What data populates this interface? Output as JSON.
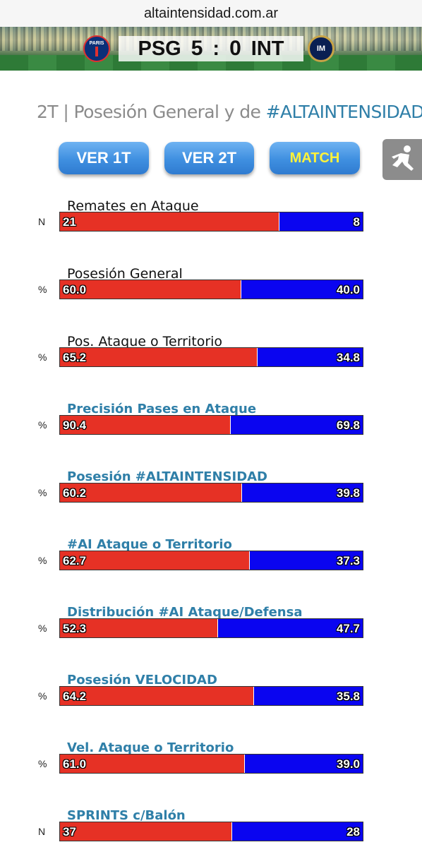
{
  "browser": {
    "url": "altaintensidad.com.ar"
  },
  "banner": {
    "home_team": "PSG",
    "home_score": "5",
    "separator": ":",
    "away_score": "0",
    "away_team": "INT",
    "home_logo_text": "PARIS",
    "away_logo_text": "IM"
  },
  "page": {
    "title_prefix": "2T | Posesión General y de ",
    "title_highlight": "#ALTAINTENSIDAD"
  },
  "buttons": {
    "ver1t": "VER 1T",
    "ver2t": "VER 2T",
    "match": "MATCH"
  },
  "colors": {
    "home_bar": "#e63125",
    "away_bar": "#0a05f0",
    "accent_label": "#2f7fa8",
    "button_blue": "#3f8fe0",
    "match_text": "#fff23a"
  },
  "stats": [
    {
      "label": "Remates en Ataque",
      "style": "plain",
      "unit": "N",
      "home": "21",
      "away": "8",
      "home_share": 72.4
    },
    {
      "label": "Posesión General",
      "style": "plain",
      "unit": "%",
      "home": "60.0",
      "away": "40.0",
      "home_share": 60.0
    },
    {
      "label": "Pos. Ataque o Territorio",
      "style": "plain",
      "unit": "%",
      "home": "65.2",
      "away": "34.8",
      "home_share": 65.2
    },
    {
      "label": "Precisión Pases en Ataque",
      "style": "accent",
      "unit": "%",
      "home": "90.4",
      "away": "69.8",
      "home_share": 56.4
    },
    {
      "label": "Posesión #ALTAINTENSIDAD",
      "style": "accent",
      "unit": "%",
      "home": "60.2",
      "away": "39.8",
      "home_share": 60.2
    },
    {
      "label": "#AI Ataque o Territorio",
      "style": "accent",
      "unit": "%",
      "home": "62.7",
      "away": "37.3",
      "home_share": 62.7
    },
    {
      "label": "Distribución #AI Ataque/Defensa",
      "style": "accent",
      "unit": "%",
      "home": "52.3",
      "away": "47.7",
      "home_share": 52.3
    },
    {
      "label": "Posesión VELOCIDAD",
      "style": "accent",
      "unit": "%",
      "home": "64.2",
      "away": "35.8",
      "home_share": 64.2
    },
    {
      "label": "Vel. Ataque o Territorio",
      "style": "accent",
      "unit": "%",
      "home": "61.0",
      "away": "39.0",
      "home_share": 61.0
    },
    {
      "label": "SPRINTS c/Balón",
      "style": "accent",
      "unit": "N",
      "home": "37",
      "away": "28",
      "home_share": 56.9
    }
  ]
}
